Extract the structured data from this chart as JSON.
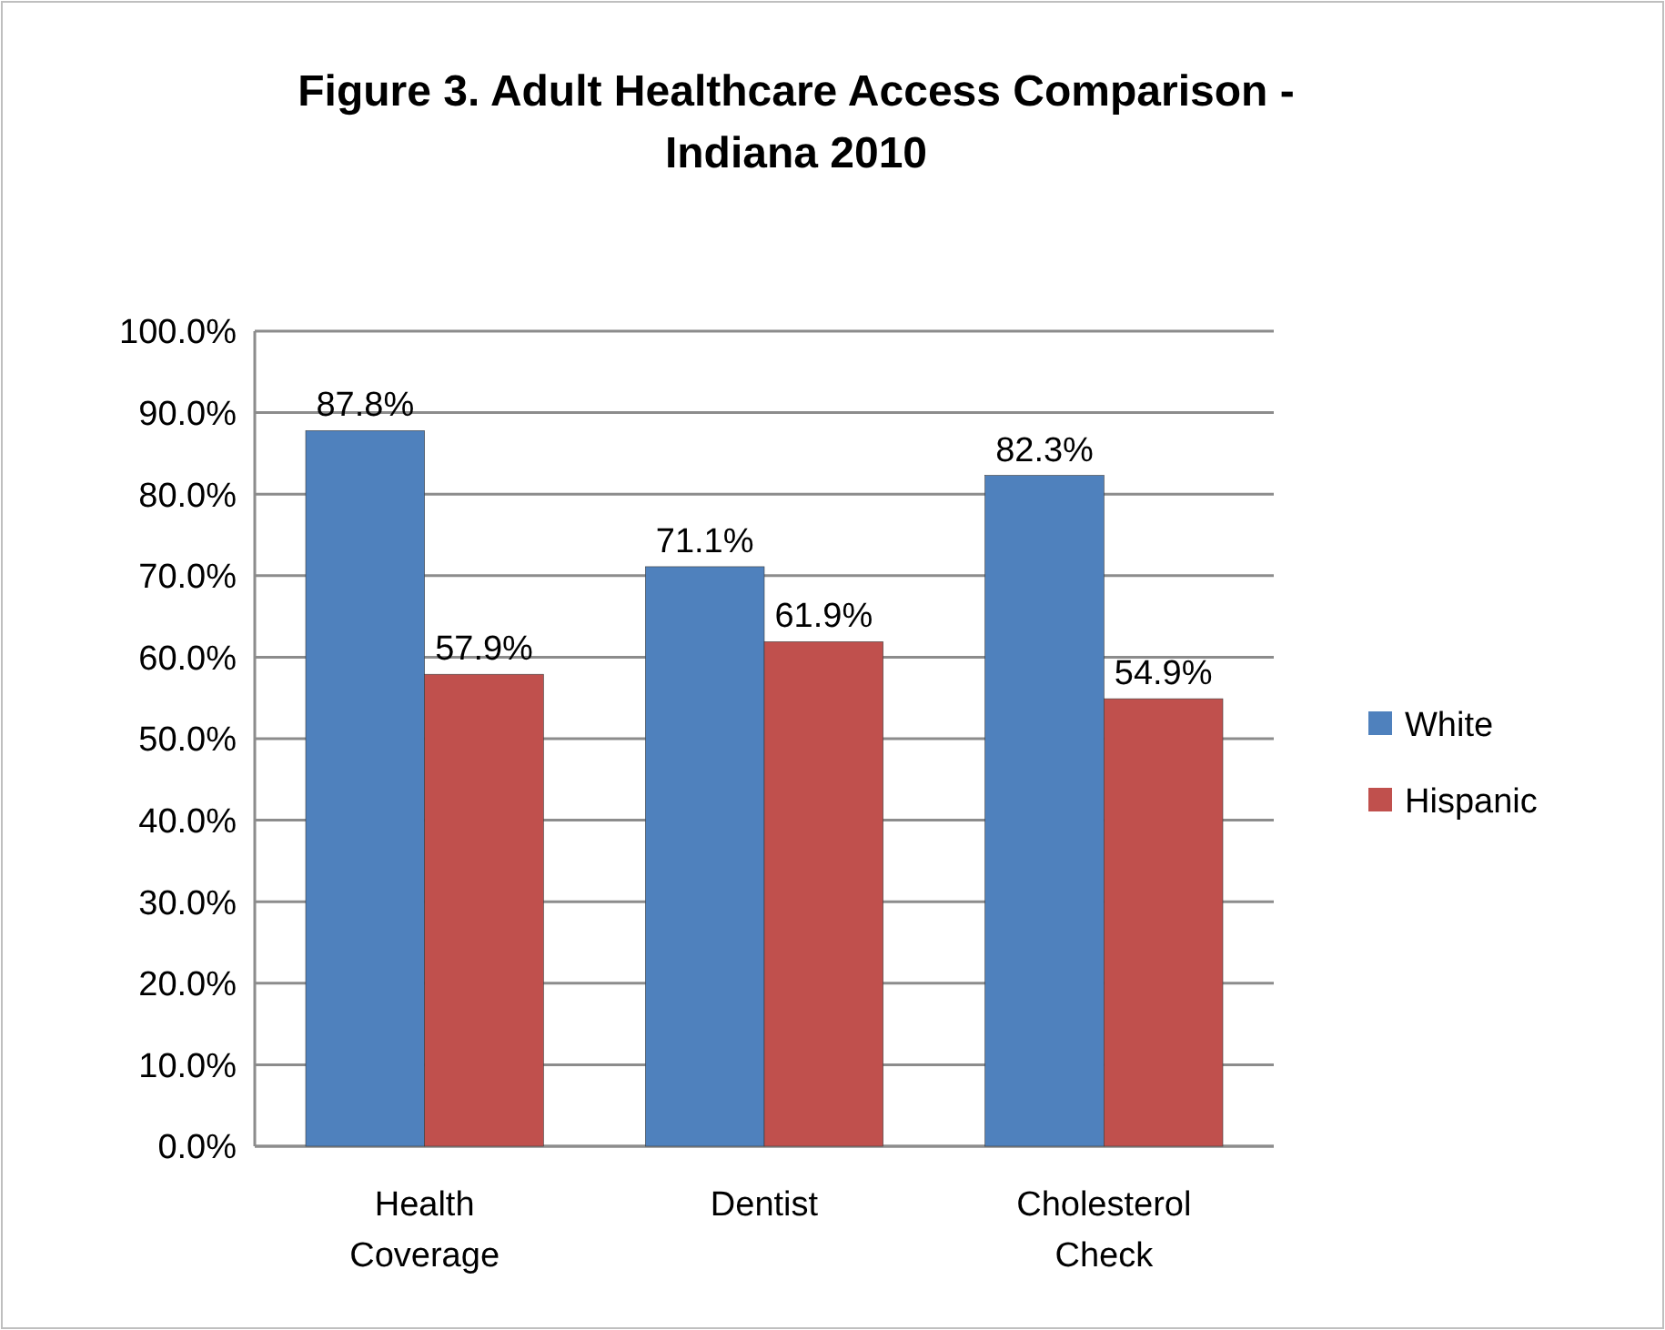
{
  "chart_data": {
    "type": "bar",
    "title": "Figure 3. Adult Healthcare Access Comparison - Indiana 2010",
    "categories": [
      "Health Coverage",
      "Dentist",
      "Cholesterol Check"
    ],
    "series": [
      {
        "name": "White",
        "color": "#4f81bd",
        "values": [
          87.8,
          71.1,
          82.3
        ],
        "value_labels": [
          "87.8%",
          "71.1%",
          "82.3%"
        ]
      },
      {
        "name": "Hispanic",
        "color": "#c0504d",
        "values": [
          57.9,
          61.9,
          54.9
        ],
        "value_labels": [
          "57.9%",
          "61.9%",
          "54.9%"
        ]
      }
    ],
    "ylim": [
      0,
      100
    ],
    "yticks": [
      {
        "value": 0,
        "label": "0.0%"
      },
      {
        "value": 10,
        "label": "10.0%"
      },
      {
        "value": 20,
        "label": "20.0%"
      },
      {
        "value": 30,
        "label": "30.0%"
      },
      {
        "value": 40,
        "label": "40.0%"
      },
      {
        "value": 50,
        "label": "50.0%"
      },
      {
        "value": 60,
        "label": "60.0%"
      },
      {
        "value": 70,
        "label": "70.0%"
      },
      {
        "value": 80,
        "label": "80.0%"
      },
      {
        "value": 90,
        "label": "90.0%"
      },
      {
        "value": 100,
        "label": "100.0%"
      }
    ],
    "grid": "y",
    "legend": "right"
  }
}
